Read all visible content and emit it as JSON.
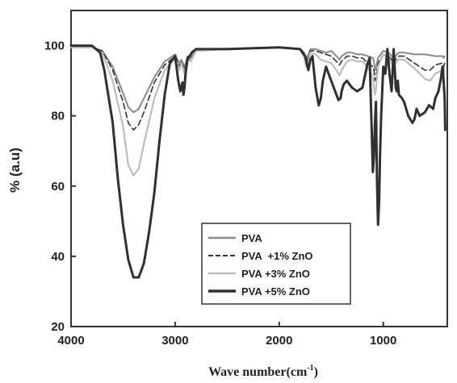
{
  "chart_data": {
    "type": "line",
    "xlabel": "Wave number(cm",
    "xlabel_sup": "-1",
    "xlabel_end": ")",
    "ylabel": "% (a.u)",
    "xlim": [
      4000,
      400
    ],
    "ylim": [
      20,
      110
    ],
    "x_reversed": true,
    "x_ticks": [
      4000,
      3000,
      2000,
      1000
    ],
    "x_tick_labels": [
      "4000",
      "3000",
      "2000",
      "1000"
    ],
    "y_ticks": [
      20,
      40,
      60,
      80,
      100
    ],
    "y_tick_labels": [
      "20",
      "40",
      "60",
      "80",
      "100"
    ],
    "legend_position": "center-bottom",
    "series": [
      {
        "name": "PVA",
        "color": "#8a8a8a",
        "dash": "solid",
        "x": [
          4000,
          3800,
          3700,
          3600,
          3500,
          3450,
          3400,
          3350,
          3300,
          3200,
          3100,
          3000,
          2960,
          2940,
          2910,
          2880,
          2850,
          2800,
          2500,
          2000,
          1800,
          1760,
          1740,
          1720,
          1700,
          1650,
          1600,
          1550,
          1500,
          1450,
          1420,
          1400,
          1350,
          1300,
          1250,
          1200,
          1150,
          1100,
          1090,
          1080,
          1070,
          1060,
          1050,
          1000,
          950,
          920,
          900,
          870,
          850,
          800,
          700,
          600,
          500,
          430,
          420,
          410
        ],
        "y": [
          99.5,
          99.5,
          98.5,
          94,
          86.5,
          82.5,
          81,
          82,
          85,
          91,
          95.5,
          97.5,
          95,
          96,
          94,
          97,
          96.5,
          98.5,
          99,
          99.5,
          99,
          98,
          96,
          97.5,
          99,
          99,
          98.5,
          98,
          98.5,
          97,
          96,
          97,
          98,
          98,
          97.5,
          97.5,
          97,
          96.5,
          95.5,
          93,
          93.5,
          95,
          96.5,
          98.5,
          98,
          97,
          96,
          97.5,
          98,
          98,
          97.5,
          97.5,
          97,
          97,
          96.5,
          97
        ]
      },
      {
        "name": "PVA  +1% ZnO",
        "color": "#333333",
        "dash": "dashed",
        "x": [
          4000,
          3800,
          3700,
          3600,
          3500,
          3450,
          3400,
          3350,
          3300,
          3200,
          3100,
          3000,
          2960,
          2940,
          2910,
          2880,
          2850,
          2800,
          2500,
          2000,
          1800,
          1760,
          1740,
          1720,
          1700,
          1650,
          1600,
          1550,
          1500,
          1450,
          1420,
          1400,
          1350,
          1300,
          1250,
          1200,
          1150,
          1100,
          1090,
          1080,
          1070,
          1060,
          1050,
          1000,
          950,
          920,
          900,
          870,
          850,
          800,
          700,
          600,
          550,
          500,
          430,
          420,
          410
        ],
        "y": [
          99.5,
          99.5,
          98.5,
          93,
          84,
          78,
          76,
          77.5,
          81,
          89.5,
          94.5,
          97,
          94,
          95.5,
          93,
          96.5,
          96,
          98.5,
          99,
          99.5,
          99,
          97,
          94.5,
          96.5,
          98.5,
          98.5,
          98,
          97.5,
          97,
          95.5,
          94.5,
          95.5,
          97,
          97,
          96.5,
          96.5,
          95,
          94,
          93,
          90,
          91,
          93,
          95,
          97.5,
          97,
          96,
          95,
          96.5,
          97,
          97,
          95,
          93,
          93,
          94.5,
          95,
          94,
          95
        ]
      },
      {
        "name": "PVA +3% ZnO",
        "color": "#bdbdbd",
        "dash": "solid",
        "x": [
          4000,
          3800,
          3700,
          3600,
          3500,
          3450,
          3400,
          3350,
          3300,
          3200,
          3100,
          3000,
          2960,
          2940,
          2910,
          2880,
          2850,
          2800,
          2500,
          2000,
          1800,
          1760,
          1740,
          1720,
          1700,
          1650,
          1600,
          1550,
          1500,
          1450,
          1420,
          1400,
          1350,
          1300,
          1250,
          1200,
          1150,
          1100,
          1090,
          1080,
          1070,
          1060,
          1050,
          1000,
          950,
          920,
          900,
          870,
          850,
          800,
          700,
          600,
          550,
          500,
          430,
          420,
          410
        ],
        "y": [
          99.5,
          99.5,
          98,
          90,
          77,
          66,
          63,
          65,
          72,
          85,
          93,
          96.5,
          93,
          95,
          92,
          96,
          95.5,
          98.5,
          99,
          99.5,
          99,
          96.5,
          94,
          95.5,
          98,
          97.5,
          96,
          95.5,
          95,
          93,
          91.5,
          93,
          95.5,
          96,
          95.5,
          95.5,
          94,
          91,
          88,
          86,
          87.5,
          91,
          94,
          97.5,
          96.5,
          95,
          94,
          95.5,
          96,
          96,
          93.5,
          90.5,
          90,
          92,
          93,
          92,
          94
        ]
      },
      {
        "name": "PVA +5% ZnO",
        "color": "#303030",
        "dash": "solid",
        "x": [
          4000,
          3800,
          3720,
          3680,
          3600,
          3550,
          3500,
          3450,
          3400,
          3350,
          3300,
          3250,
          3200,
          3150,
          3100,
          3050,
          3000,
          2970,
          2950,
          2930,
          2920,
          2910,
          2900,
          2880,
          2860,
          2840,
          2800,
          2500,
          2000,
          1800,
          1750,
          1720,
          1700,
          1680,
          1650,
          1620,
          1600,
          1580,
          1550,
          1500,
          1450,
          1430,
          1410,
          1400,
          1380,
          1350,
          1300,
          1250,
          1200,
          1150,
          1130,
          1120,
          1110,
          1100,
          1090,
          1080,
          1070,
          1060,
          1050,
          1040,
          1030,
          1020,
          1010,
          1000,
          980,
          960,
          940,
          920,
          900,
          880,
          870,
          860,
          850,
          820,
          800,
          760,
          720,
          700,
          680,
          650,
          600,
          560,
          520,
          500,
          470,
          450,
          430,
          420,
          410,
          405
        ],
        "y": [
          100,
          100,
          98,
          93,
          78,
          62,
          49,
          39,
          34,
          34,
          38,
          47,
          58,
          73,
          86,
          95,
          97,
          90,
          87,
          89.5,
          86,
          88,
          92,
          96.5,
          97,
          98,
          99,
          99,
          99.5,
          99,
          97,
          93,
          96,
          97,
          88,
          83,
          85,
          90,
          94,
          90,
          86,
          84.5,
          85,
          87,
          89,
          90,
          88,
          87,
          88,
          95,
          96.5,
          85,
          75,
          64,
          68,
          78,
          84,
          62,
          49,
          55,
          70,
          80,
          87,
          94,
          92,
          99,
          92,
          87,
          99,
          88,
          87,
          90,
          86,
          85,
          84,
          80,
          78,
          79,
          82,
          80,
          81,
          83,
          82,
          85,
          87,
          90,
          94,
          90,
          85,
          76
        ]
      }
    ]
  }
}
